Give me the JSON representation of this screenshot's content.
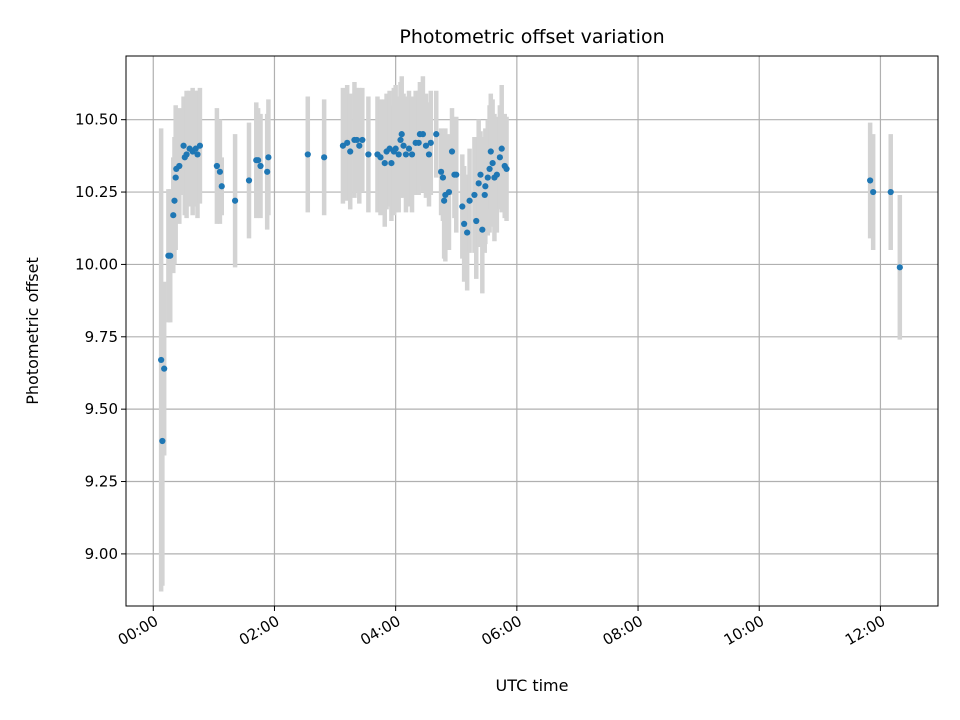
{
  "chart_data": {
    "type": "scatter",
    "title": "Photometric offset variation",
    "xlabel": "UTC time",
    "ylabel": "Photometric offset",
    "x_unit": "hours",
    "xlim": [
      -0.45,
      12.95
    ],
    "ylim": [
      8.82,
      10.72
    ],
    "grid": true,
    "x_ticks": [
      {
        "value": 0,
        "label": "00:00"
      },
      {
        "value": 2,
        "label": "02:00"
      },
      {
        "value": 4,
        "label": "04:00"
      },
      {
        "value": 6,
        "label": "06:00"
      },
      {
        "value": 8,
        "label": "08:00"
      },
      {
        "value": 10,
        "label": "10:00"
      },
      {
        "value": 12,
        "label": "12:00"
      }
    ],
    "y_ticks": [
      {
        "value": 9.0,
        "label": "9.00"
      },
      {
        "value": 9.25,
        "label": "9.25"
      },
      {
        "value": 9.5,
        "label": "9.50"
      },
      {
        "value": 9.75,
        "label": "9.75"
      },
      {
        "value": 10.0,
        "label": "10.00"
      },
      {
        "value": 10.25,
        "label": "10.25"
      },
      {
        "value": 10.5,
        "label": "10.50"
      }
    ],
    "colors": {
      "marker": "#1f77b4",
      "errorbar": "#d3d3d3",
      "grid": "#b0b0b0"
    },
    "points": [
      [
        0.13,
        9.67,
        0.8
      ],
      [
        0.15,
        9.39,
        0.5
      ],
      [
        0.18,
        9.64,
        0.3
      ],
      [
        0.25,
        10.03,
        0.23
      ],
      [
        0.28,
        10.03,
        0.23
      ],
      [
        0.33,
        10.17,
        0.2
      ],
      [
        0.35,
        10.22,
        0.22
      ],
      [
        0.37,
        10.3,
        0.25
      ],
      [
        0.38,
        10.33,
        0.15
      ],
      [
        0.43,
        10.34,
        0.2
      ],
      [
        0.5,
        10.41,
        0.17
      ],
      [
        0.52,
        10.37,
        0.2
      ],
      [
        0.55,
        10.38,
        0.22
      ],
      [
        0.6,
        10.4,
        0.2
      ],
      [
        0.65,
        10.39,
        0.22
      ],
      [
        0.7,
        10.4,
        0.2
      ],
      [
        0.73,
        10.38,
        0.22
      ],
      [
        0.77,
        10.41,
        0.2
      ],
      [
        1.05,
        10.34,
        0.2
      ],
      [
        1.1,
        10.32,
        0.18
      ],
      [
        1.13,
        10.27,
        0.1
      ],
      [
        1.35,
        10.22,
        0.23
      ],
      [
        1.58,
        10.29,
        0.2
      ],
      [
        1.7,
        10.36,
        0.2
      ],
      [
        1.73,
        10.36,
        0.18
      ],
      [
        1.77,
        10.34,
        0.18
      ],
      [
        1.88,
        10.32,
        0.2
      ],
      [
        1.9,
        10.37,
        0.2
      ],
      [
        2.55,
        10.38,
        0.2
      ],
      [
        2.82,
        10.37,
        0.2
      ],
      [
        3.13,
        10.41,
        0.2
      ],
      [
        3.2,
        10.42,
        0.2
      ],
      [
        3.25,
        10.39,
        0.2
      ],
      [
        3.32,
        10.43,
        0.2
      ],
      [
        3.36,
        10.43,
        0.18
      ],
      [
        3.4,
        10.41,
        0.2
      ],
      [
        3.45,
        10.43,
        0.18
      ],
      [
        3.55,
        10.38,
        0.2
      ],
      [
        3.7,
        10.38,
        0.2
      ],
      [
        3.75,
        10.37,
        0.2
      ],
      [
        3.82,
        10.35,
        0.22
      ],
      [
        3.85,
        10.39,
        0.2
      ],
      [
        3.9,
        10.4,
        0.2
      ],
      [
        3.93,
        10.35,
        0.2
      ],
      [
        3.97,
        10.39,
        0.22
      ],
      [
        4.0,
        10.4,
        0.22
      ],
      [
        4.05,
        10.38,
        0.2
      ],
      [
        4.08,
        10.43,
        0.2
      ],
      [
        4.1,
        10.45,
        0.2
      ],
      [
        4.13,
        10.41,
        0.18
      ],
      [
        4.17,
        10.38,
        0.2
      ],
      [
        4.22,
        10.4,
        0.2
      ],
      [
        4.27,
        10.38,
        0.2
      ],
      [
        4.33,
        10.42,
        0.18
      ],
      [
        4.38,
        10.42,
        0.18
      ],
      [
        4.4,
        10.45,
        0.18
      ],
      [
        4.45,
        10.45,
        0.2
      ],
      [
        4.5,
        10.41,
        0.18
      ],
      [
        4.55,
        10.38,
        0.18
      ],
      [
        4.58,
        10.42,
        0.18
      ],
      [
        4.67,
        10.45,
        0.15
      ],
      [
        4.75,
        10.32,
        0.15
      ],
      [
        4.78,
        10.3,
        0.15
      ],
      [
        4.8,
        10.22,
        0.2
      ],
      [
        4.82,
        10.24,
        0.23
      ],
      [
        4.88,
        10.25,
        0.2
      ],
      [
        4.93,
        10.39,
        0.15
      ],
      [
        4.97,
        10.31,
        0.15
      ],
      [
        5.0,
        10.31,
        0.2
      ],
      [
        5.1,
        10.2,
        0.18
      ],
      [
        5.13,
        10.14,
        0.2
      ],
      [
        5.18,
        10.11,
        0.2
      ],
      [
        5.22,
        10.22,
        0.18
      ],
      [
        5.3,
        10.24,
        0.2
      ],
      [
        5.33,
        10.15,
        0.2
      ],
      [
        5.37,
        10.28,
        0.22
      ],
      [
        5.4,
        10.31,
        0.15
      ],
      [
        5.43,
        10.12,
        0.22
      ],
      [
        5.47,
        10.24,
        0.2
      ],
      [
        5.48,
        10.27,
        0.2
      ],
      [
        5.52,
        10.3,
        0.2
      ],
      [
        5.55,
        10.33,
        0.22
      ],
      [
        5.57,
        10.39,
        0.2
      ],
      [
        5.6,
        10.35,
        0.22
      ],
      [
        5.63,
        10.3,
        0.22
      ],
      [
        5.67,
        10.31,
        0.2
      ],
      [
        5.72,
        10.37,
        0.18
      ],
      [
        5.75,
        10.4,
        0.22
      ],
      [
        5.8,
        10.34,
        0.18
      ],
      [
        5.83,
        10.33,
        0.18
      ],
      [
        11.83,
        10.29,
        0.2
      ],
      [
        11.88,
        10.25,
        0.2
      ],
      [
        12.17,
        10.25,
        0.2
      ],
      [
        12.32,
        9.99,
        0.25
      ]
    ]
  }
}
